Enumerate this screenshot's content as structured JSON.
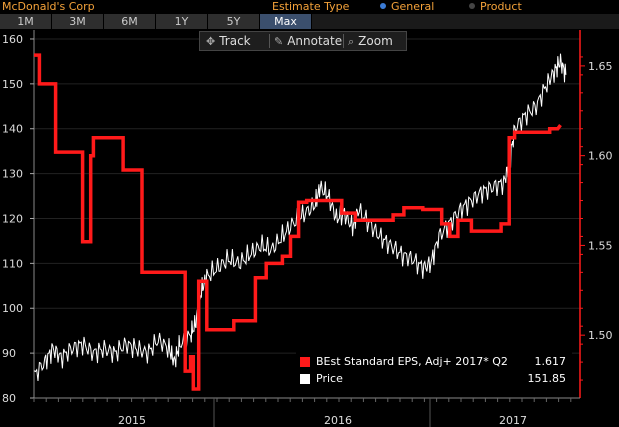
{
  "header": {
    "company": "McDonald's Corp",
    "estimate_type_label": "Estimate Type",
    "options": [
      {
        "label": "General",
        "selected": true,
        "color": "#3a7bd5"
      },
      {
        "label": "Product",
        "selected": false,
        "color": "#444444"
      }
    ]
  },
  "tabs": [
    {
      "label": "1M",
      "active": false
    },
    {
      "label": "3M",
      "active": false
    },
    {
      "label": "6M",
      "active": false
    },
    {
      "label": "1Y",
      "active": false
    },
    {
      "label": "5Y",
      "active": false
    },
    {
      "label": "Max",
      "active": true
    }
  ],
  "toolbar": {
    "track": "Track",
    "annotate": "Annotate",
    "zoom": "Zoom"
  },
  "legend": {
    "eps_label": "BEst Standard EPS, Adj+ 2017* Q2",
    "eps_value": "1.617",
    "price_label": "Price",
    "price_value": "151.85"
  },
  "colors": {
    "eps": "#ff1a1a",
    "price": "#ffffff",
    "accent": "#f4a23a",
    "grid": "#2a2a2a"
  },
  "chart_data": {
    "type": "line",
    "x_labels": [
      "2015",
      "2016",
      "2017"
    ],
    "left_axis": {
      "ticks": [
        "160",
        "150",
        "140",
        "130",
        "120",
        "110",
        "100",
        "90",
        "80"
      ],
      "range": [
        80,
        162
      ]
    },
    "right_axis": {
      "ticks": [
        "1.65",
        "1.60",
        "1.55",
        "1.50"
      ],
      "range": [
        1.465,
        1.67
      ]
    },
    "series": [
      {
        "name": "BEst Standard EPS, Adj+ 2017* Q2",
        "axis": "right",
        "points": [
          [
            0,
            1.656
          ],
          [
            0.01,
            1.656
          ],
          [
            0.01,
            1.64
          ],
          [
            0.04,
            1.64
          ],
          [
            0.04,
            1.602
          ],
          [
            0.09,
            1.602
          ],
          [
            0.09,
            1.552
          ],
          [
            0.105,
            1.552
          ],
          [
            0.105,
            1.6
          ],
          [
            0.11,
            1.6
          ],
          [
            0.11,
            1.61
          ],
          [
            0.165,
            1.61
          ],
          [
            0.165,
            1.592
          ],
          [
            0.2,
            1.592
          ],
          [
            0.2,
            1.535
          ],
          [
            0.28,
            1.535
          ],
          [
            0.28,
            1.48
          ],
          [
            0.29,
            1.48
          ],
          [
            0.29,
            1.488
          ],
          [
            0.295,
            1.488
          ],
          [
            0.295,
            1.47
          ],
          [
            0.305,
            1.47
          ],
          [
            0.305,
            1.53
          ],
          [
            0.32,
            1.53
          ],
          [
            0.32,
            1.503
          ],
          [
            0.37,
            1.503
          ],
          [
            0.37,
            1.508
          ],
          [
            0.41,
            1.508
          ],
          [
            0.41,
            1.532
          ],
          [
            0.43,
            1.532
          ],
          [
            0.43,
            1.54
          ],
          [
            0.46,
            1.54
          ],
          [
            0.46,
            1.544
          ],
          [
            0.475,
            1.544
          ],
          [
            0.475,
            1.555
          ],
          [
            0.49,
            1.555
          ],
          [
            0.49,
            1.574
          ],
          [
            0.505,
            1.574
          ],
          [
            0.505,
            1.575
          ],
          [
            0.57,
            1.575
          ],
          [
            0.57,
            1.568
          ],
          [
            0.595,
            1.568
          ],
          [
            0.595,
            1.564
          ],
          [
            0.665,
            1.564
          ],
          [
            0.665,
            1.567
          ],
          [
            0.685,
            1.567
          ],
          [
            0.685,
            1.571
          ],
          [
            0.72,
            1.571
          ],
          [
            0.72,
            1.57
          ],
          [
            0.755,
            1.57
          ],
          [
            0.755,
            1.562
          ],
          [
            0.77,
            1.562
          ],
          [
            0.77,
            1.555
          ],
          [
            0.785,
            1.555
          ],
          [
            0.785,
            1.564
          ],
          [
            0.81,
            1.564
          ],
          [
            0.81,
            1.558
          ],
          [
            0.865,
            1.558
          ],
          [
            0.865,
            1.562
          ],
          [
            0.88,
            1.562
          ],
          [
            0.88,
            1.61
          ],
          [
            0.89,
            1.61
          ],
          [
            0.89,
            1.613
          ],
          [
            0.955,
            1.613
          ],
          [
            0.955,
            1.615
          ],
          [
            0.97,
            1.615
          ],
          [
            0.975,
            1.617
          ]
        ]
      },
      {
        "name": "Price",
        "axis": "left",
        "points": [
          [
            0,
            85
          ],
          [
            0.02,
            88
          ],
          [
            0.035,
            91
          ],
          [
            0.05,
            89
          ],
          [
            0.07,
            91
          ],
          [
            0.09,
            92
          ],
          [
            0.11,
            90
          ],
          [
            0.13,
            91
          ],
          [
            0.15,
            90
          ],
          [
            0.17,
            92
          ],
          [
            0.19,
            91
          ],
          [
            0.21,
            90
          ],
          [
            0.23,
            93
          ],
          [
            0.25,
            91
          ],
          [
            0.26,
            88
          ],
          [
            0.27,
            92
          ],
          [
            0.29,
            94
          ],
          [
            0.3,
            97
          ],
          [
            0.31,
            104
          ],
          [
            0.32,
            107
          ],
          [
            0.34,
            109
          ],
          [
            0.36,
            111
          ],
          [
            0.38,
            110
          ],
          [
            0.4,
            112
          ],
          [
            0.42,
            114
          ],
          [
            0.44,
            113
          ],
          [
            0.46,
            116
          ],
          [
            0.48,
            119
          ],
          [
            0.5,
            121
          ],
          [
            0.52,
            123
          ],
          [
            0.53,
            127
          ],
          [
            0.545,
            125
          ],
          [
            0.56,
            120
          ],
          [
            0.575,
            121
          ],
          [
            0.59,
            118
          ],
          [
            0.6,
            122
          ],
          [
            0.62,
            119
          ],
          [
            0.64,
            116
          ],
          [
            0.66,
            114
          ],
          [
            0.68,
            112
          ],
          [
            0.7,
            111
          ],
          [
            0.72,
            109
          ],
          [
            0.735,
            110
          ],
          [
            0.75,
            116
          ],
          [
            0.77,
            119
          ],
          [
            0.79,
            122
          ],
          [
            0.81,
            124
          ],
          [
            0.83,
            126
          ],
          [
            0.85,
            127
          ],
          [
            0.87,
            128
          ],
          [
            0.88,
            132
          ],
          [
            0.89,
            140
          ],
          [
            0.91,
            143
          ],
          [
            0.93,
            145
          ],
          [
            0.95,
            150
          ],
          [
            0.965,
            153
          ],
          [
            0.975,
            155
          ],
          [
            0.985,
            152
          ]
        ]
      }
    ]
  }
}
